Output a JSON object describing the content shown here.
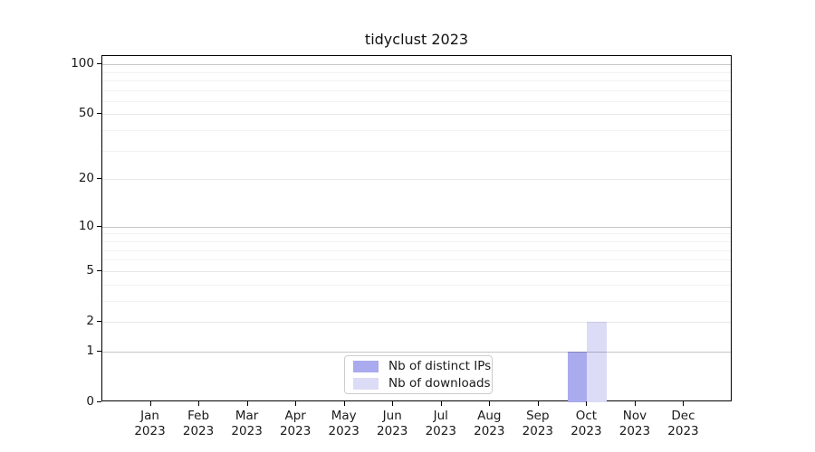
{
  "chart_data": {
    "type": "bar",
    "title": "tidyclust 2023",
    "x_axis": {
      "months": [
        "Jan",
        "Feb",
        "Mar",
        "Apr",
        "May",
        "Jun",
        "Jul",
        "Aug",
        "Sep",
        "Oct",
        "Nov",
        "Dec"
      ],
      "year": "2023"
    },
    "y_axis": {
      "scale": "log1p",
      "ticks": [
        0,
        1,
        2,
        5,
        10,
        20,
        50,
        100
      ],
      "decade_gridlines": [
        1,
        10,
        100
      ],
      "labeled_gridlines": [
        2,
        5,
        20,
        50
      ],
      "minor_gridlines": [
        3,
        4,
        6,
        7,
        8,
        9,
        30,
        40,
        60,
        70,
        80,
        90
      ],
      "max": 112
    },
    "series": [
      {
        "name": "Nb of distinct IPs",
        "color": "#aaaaee",
        "values": [
          0,
          0,
          0,
          0,
          0,
          0,
          0,
          0,
          0,
          1,
          0,
          0
        ]
      },
      {
        "name": "Nb of downloads",
        "color": "#dcdcf6",
        "values": [
          0,
          0,
          0,
          0,
          0,
          0,
          0,
          0,
          0,
          2,
          0,
          0
        ]
      }
    ],
    "legend": {
      "position": "bottom-center"
    },
    "grid": true
  },
  "colors": {
    "background": "#ffffff",
    "spine": "#000000",
    "tick_label": "#1a1a1a",
    "grid_decade": "rgba(0,0,0,0.22)",
    "grid_labeled": "rgba(0,0,0,0.09)",
    "grid_minor": "rgba(0,0,0,0.05)",
    "legend_border": "#cccccc"
  }
}
